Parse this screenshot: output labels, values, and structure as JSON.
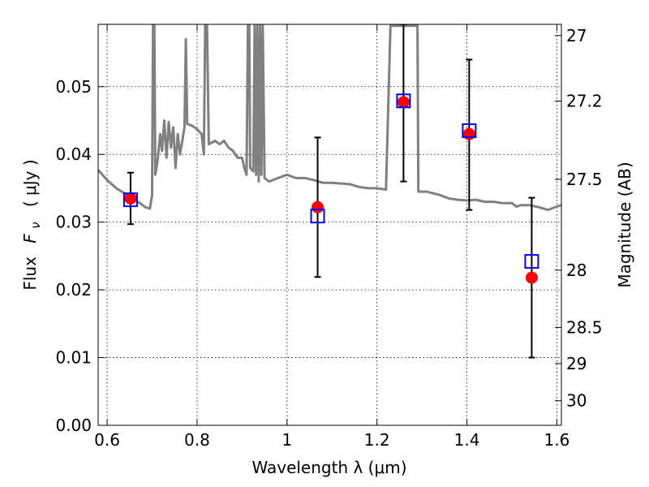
{
  "chart_data": {
    "type": "scatter",
    "xlabel": "Wavelength  λ (μm)",
    "ylabel_prefix": "Flux",
    "ylabel_symbol": "F",
    "ylabel_symbol_sub": "ν",
    "ylabel_suffix": "( μJy )",
    "y2label": "Magnitude (AB)",
    "xlim": [
      0.58,
      1.61
    ],
    "ylim": [
      0.0,
      0.0592
    ],
    "grid": true,
    "x_ticks": [
      {
        "value": 0.6,
        "label": "0.6"
      },
      {
        "value": 0.8,
        "label": "0.8"
      },
      {
        "value": 1.0,
        "label": "1"
      },
      {
        "value": 1.2,
        "label": "1.2"
      },
      {
        "value": 1.4,
        "label": "1.4"
      },
      {
        "value": 1.6,
        "label": "1.6"
      }
    ],
    "y_ticks": [
      {
        "value": 0.0,
        "label": "0.00"
      },
      {
        "value": 0.01,
        "label": "0.01"
      },
      {
        "value": 0.02,
        "label": "0.02"
      },
      {
        "value": 0.03,
        "label": "0.03"
      },
      {
        "value": 0.04,
        "label": "0.04"
      },
      {
        "value": 0.05,
        "label": "0.05"
      }
    ],
    "y2_ticks": [
      {
        "value": 27.0,
        "label": "27"
      },
      {
        "value": 27.2,
        "label": "27.2"
      },
      {
        "value": 27.5,
        "label": "27.5"
      },
      {
        "value": 28.0,
        "label": "28"
      },
      {
        "value": 28.5,
        "label": "28.5"
      },
      {
        "value": 29.0,
        "label": "29"
      },
      {
        "value": 30.0,
        "label": "30"
      }
    ],
    "colors": {
      "model_line": "#808080",
      "observed": "#ff0000",
      "model_flux": "#0000ff",
      "errorbar": "#000000"
    },
    "series": [
      {
        "kind": "line",
        "points": [
          [
            0.58,
            0.0377
          ],
          [
            0.6,
            0.0362
          ],
          [
            0.62,
            0.035
          ],
          [
            0.64,
            0.0342
          ],
          [
            0.66,
            0.0333
          ],
          [
            0.675,
            0.0327
          ],
          [
            0.685,
            0.0322
          ],
          [
            0.695,
            0.032
          ],
          [
            0.7,
            0.034
          ],
          [
            0.702,
            0.059
          ],
          [
            0.705,
            0.059
          ],
          [
            0.707,
            0.037
          ],
          [
            0.712,
            0.039
          ],
          [
            0.718,
            0.043
          ],
          [
            0.722,
            0.0405
          ],
          [
            0.727,
            0.045
          ],
          [
            0.732,
            0.0395
          ],
          [
            0.737,
            0.0448
          ],
          [
            0.742,
            0.041
          ],
          [
            0.747,
            0.044
          ],
          [
            0.752,
            0.038
          ],
          [
            0.757,
            0.043
          ],
          [
            0.762,
            0.04
          ],
          [
            0.767,
            0.042
          ],
          [
            0.772,
            0.044
          ],
          [
            0.775,
            0.057
          ],
          [
            0.778,
            0.0445
          ],
          [
            0.79,
            0.0442
          ],
          [
            0.8,
            0.0437
          ],
          [
            0.81,
            0.043
          ],
          [
            0.815,
            0.04
          ],
          [
            0.818,
            0.059
          ],
          [
            0.822,
            0.059
          ],
          [
            0.826,
            0.0415
          ],
          [
            0.84,
            0.042
          ],
          [
            0.85,
            0.0415
          ],
          [
            0.86,
            0.042
          ],
          [
            0.87,
            0.041
          ],
          [
            0.88,
            0.0405
          ],
          [
            0.89,
            0.0395
          ],
          [
            0.9,
            0.0395
          ],
          [
            0.905,
            0.038
          ],
          [
            0.91,
            0.037
          ],
          [
            0.913,
            0.059
          ],
          [
            0.916,
            0.059
          ],
          [
            0.918,
            0.038
          ],
          [
            0.925,
            0.0375
          ],
          [
            0.928,
            0.059
          ],
          [
            0.931,
            0.037
          ],
          [
            0.934,
            0.059
          ],
          [
            0.937,
            0.036
          ],
          [
            0.94,
            0.059
          ],
          [
            0.943,
            0.037
          ],
          [
            0.946,
            0.059
          ],
          [
            0.95,
            0.0365
          ],
          [
            0.96,
            0.036
          ],
          [
            0.98,
            0.0365
          ],
          [
            1.0,
            0.037
          ],
          [
            1.02,
            0.0365
          ],
          [
            1.04,
            0.0365
          ],
          [
            1.06,
            0.0362
          ],
          [
            1.08,
            0.0358
          ],
          [
            1.1,
            0.0358
          ],
          [
            1.12,
            0.0357
          ],
          [
            1.14,
            0.0356
          ],
          [
            1.16,
            0.0352
          ],
          [
            1.18,
            0.035
          ],
          [
            1.2,
            0.035
          ],
          [
            1.22,
            0.0348
          ],
          [
            1.23,
            0.059
          ],
          [
            1.24,
            0.059
          ],
          [
            1.29,
            0.059
          ],
          [
            1.292,
            0.0345
          ],
          [
            1.31,
            0.0345
          ],
          [
            1.34,
            0.034
          ],
          [
            1.36,
            0.0335
          ],
          [
            1.38,
            0.0333
          ],
          [
            1.4,
            0.0332
          ],
          [
            1.42,
            0.0333
          ],
          [
            1.44,
            0.033
          ],
          [
            1.46,
            0.033
          ],
          [
            1.48,
            0.0328
          ],
          [
            1.5,
            0.0328
          ],
          [
            1.51,
            0.0323
          ],
          [
            1.52,
            0.0325
          ],
          [
            1.54,
            0.0325
          ],
          [
            1.56,
            0.0322
          ],
          [
            1.58,
            0.0318
          ],
          [
            1.6,
            0.0323
          ],
          [
            1.61,
            0.0325
          ]
        ]
      },
      {
        "kind": "observed",
        "points": [
          {
            "x": 0.652,
            "y": 0.0335,
            "ylo": 0.0297,
            "yhi": 0.0373
          },
          {
            "x": 1.068,
            "y": 0.0322,
            "ylo": 0.0219,
            "yhi": 0.0425
          },
          {
            "x": 1.259,
            "y": 0.0477,
            "ylo": 0.036,
            "yhi": 0.0592
          },
          {
            "x": 1.405,
            "y": 0.043,
            "ylo": 0.0318,
            "yhi": 0.054
          },
          {
            "x": 1.544,
            "y": 0.0218,
            "ylo": 0.01,
            "yhi": 0.0336
          }
        ]
      },
      {
        "kind": "model_flux",
        "points": [
          {
            "x": 0.652,
            "y": 0.0333
          },
          {
            "x": 1.068,
            "y": 0.0309
          },
          {
            "x": 1.259,
            "y": 0.0479
          },
          {
            "x": 1.405,
            "y": 0.0435
          },
          {
            "x": 1.544,
            "y": 0.0242
          }
        ]
      }
    ]
  }
}
